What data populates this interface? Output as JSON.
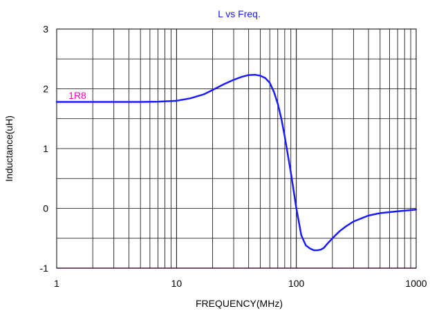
{
  "chart_data": {
    "type": "line",
    "title": "L vs Freq.",
    "xlabel": "FREQUENCY(MHz)",
    "ylabel": "Inductance(uH)",
    "x_scale": "log",
    "xlim": [
      1,
      1000
    ],
    "ylim": [
      -1,
      3
    ],
    "x_ticks": [
      "1",
      "10",
      "100",
      "1000"
    ],
    "y_ticks": [
      "3",
      "2",
      "1",
      "0",
      "-1"
    ],
    "grid": true,
    "series": [
      {
        "name": "1R8",
        "color": "#1a1aff",
        "x": [
          1,
          2,
          3,
          5,
          7,
          10,
          13,
          17,
          20,
          25,
          30,
          35,
          40,
          45,
          50,
          55,
          60,
          65,
          70,
          75,
          80,
          90,
          100,
          110,
          120,
          130,
          140,
          150,
          160,
          170,
          180,
          200,
          230,
          260,
          300,
          400,
          500,
          700,
          1000
        ],
        "y": [
          1.78,
          1.78,
          1.78,
          1.78,
          1.785,
          1.8,
          1.84,
          1.91,
          1.98,
          2.08,
          2.15,
          2.2,
          2.23,
          2.235,
          2.22,
          2.18,
          2.1,
          1.95,
          1.75,
          1.5,
          1.2,
          0.6,
          0.0,
          -0.45,
          -0.62,
          -0.67,
          -0.7,
          -0.7,
          -0.69,
          -0.66,
          -0.6,
          -0.5,
          -0.38,
          -0.3,
          -0.22,
          -0.12,
          -0.08,
          -0.05,
          -0.02
        ]
      }
    ]
  },
  "colors": {
    "title": "#1a1aff",
    "series_label": "#ff00cc",
    "bottom_axis": "#cc44cc",
    "grid": "#000000"
  }
}
